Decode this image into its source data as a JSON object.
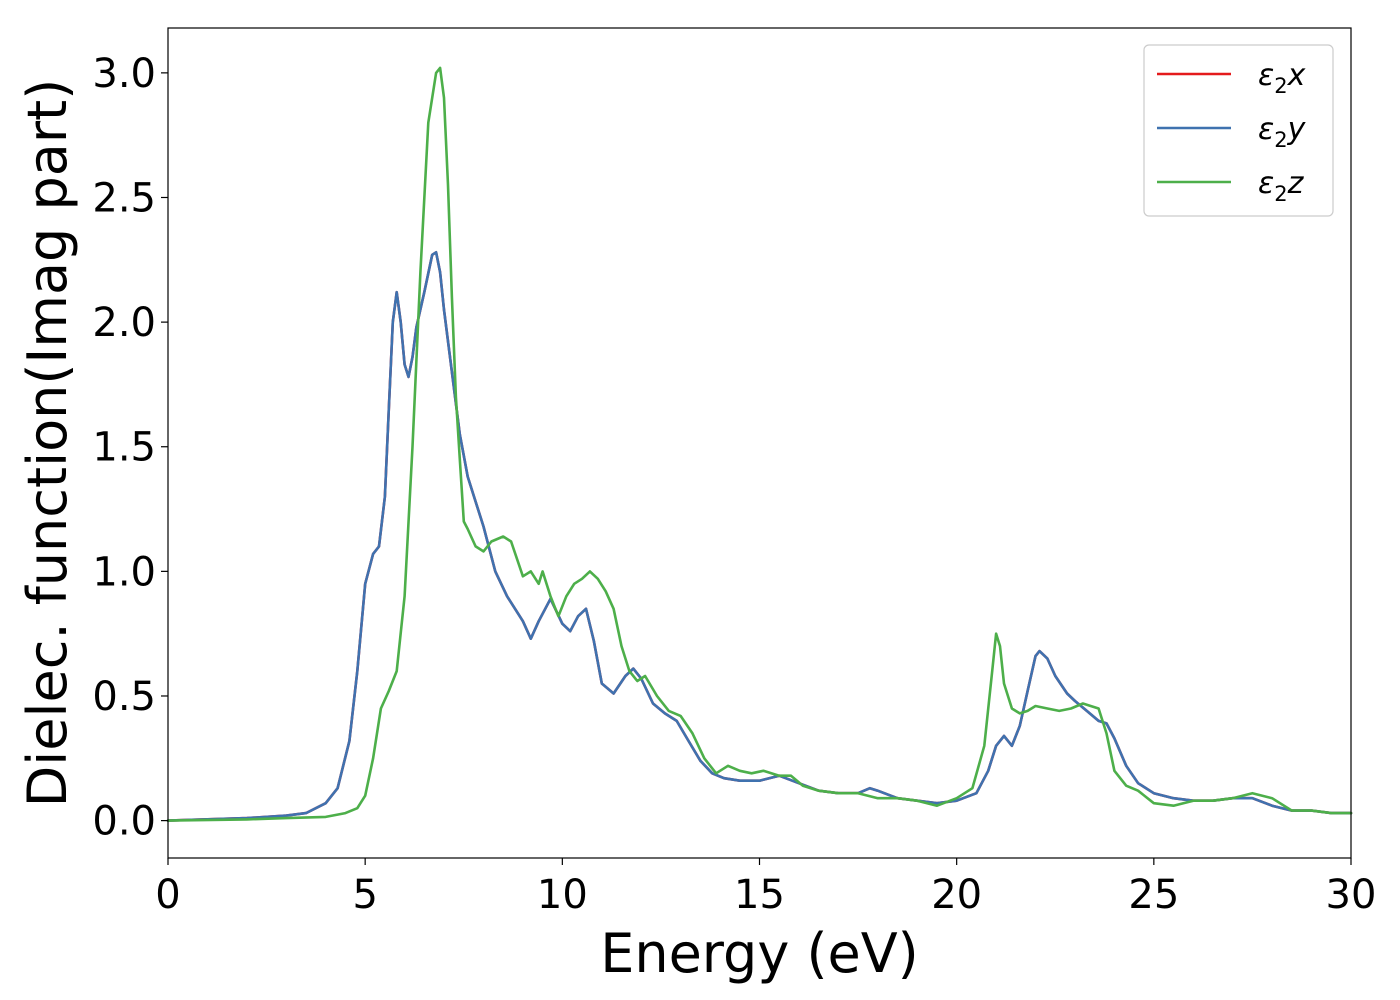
{
  "chart_data": {
    "type": "line",
    "title": "",
    "xlabel": "Energy (eV)",
    "ylabel": "Dielec. function(Imag part)",
    "xlim": [
      0,
      30
    ],
    "ylim": [
      -0.15,
      3.18
    ],
    "xticks": [
      0,
      5,
      10,
      15,
      20,
      25,
      30
    ],
    "yticks": [
      0.0,
      0.5,
      1.0,
      1.5,
      2.0,
      2.5,
      3.0
    ],
    "xtick_labels": [
      "0",
      "5",
      "10",
      "15",
      "20",
      "25",
      "30"
    ],
    "ytick_labels": [
      "0.0",
      "0.5",
      "1.0",
      "1.5",
      "2.0",
      "2.5",
      "3.0"
    ],
    "grid": false,
    "legend_position": "top-right",
    "series": [
      {
        "name": "ε₂x",
        "legend_base": "ε",
        "legend_sub": "2",
        "legend_suffix": "x",
        "color": "#e41a1c",
        "x": [
          0,
          2,
          3,
          3.5,
          4,
          4.3,
          4.6,
          4.8,
          5.0,
          5.2,
          5.35,
          5.5,
          5.6,
          5.7,
          5.8,
          5.9,
          6.0,
          6.1,
          6.2,
          6.3,
          6.5,
          6.7,
          6.8,
          6.9,
          7.0,
          7.2,
          7.4,
          7.6,
          7.8,
          8.0,
          8.3,
          8.6,
          9.0,
          9.2,
          9.4,
          9.7,
          10.0,
          10.2,
          10.4,
          10.6,
          10.8,
          11.0,
          11.3,
          11.6,
          11.8,
          12.0,
          12.3,
          12.6,
          12.9,
          13.2,
          13.5,
          13.8,
          14.1,
          14.5,
          15.0,
          15.5,
          16.0,
          16.5,
          17.0,
          17.5,
          17.8,
          18.0,
          18.5,
          19.0,
          19.5,
          20.0,
          20.5,
          20.8,
          21.0,
          21.2,
          21.4,
          21.6,
          21.8,
          22.0,
          22.1,
          22.3,
          22.5,
          22.8,
          23.0,
          23.3,
          23.6,
          23.8,
          24.0,
          24.3,
          24.6,
          25.0,
          25.5,
          26.0,
          26.5,
          27.0,
          27.5,
          28.0,
          28.5,
          29.0,
          29.5,
          30.0
        ],
        "y": [
          0.0,
          0.01,
          0.02,
          0.03,
          0.07,
          0.13,
          0.32,
          0.6,
          0.95,
          1.07,
          1.1,
          1.3,
          1.65,
          2.0,
          2.12,
          2.0,
          1.83,
          1.78,
          1.86,
          1.98,
          2.12,
          2.27,
          2.28,
          2.2,
          2.05,
          1.8,
          1.55,
          1.38,
          1.28,
          1.18,
          1.0,
          0.9,
          0.8,
          0.73,
          0.8,
          0.89,
          0.79,
          0.76,
          0.82,
          0.85,
          0.72,
          0.55,
          0.51,
          0.58,
          0.61,
          0.57,
          0.47,
          0.43,
          0.4,
          0.32,
          0.24,
          0.19,
          0.17,
          0.16,
          0.16,
          0.18,
          0.15,
          0.12,
          0.11,
          0.11,
          0.13,
          0.12,
          0.09,
          0.08,
          0.07,
          0.08,
          0.11,
          0.2,
          0.3,
          0.34,
          0.3,
          0.38,
          0.52,
          0.66,
          0.68,
          0.65,
          0.58,
          0.51,
          0.48,
          0.44,
          0.4,
          0.39,
          0.33,
          0.22,
          0.15,
          0.11,
          0.09,
          0.08,
          0.08,
          0.09,
          0.09,
          0.06,
          0.04,
          0.04,
          0.03,
          0.03
        ]
      },
      {
        "name": "ε₂y",
        "legend_base": "ε",
        "legend_sub": "2",
        "legend_suffix": "y",
        "color": "#3f72af",
        "x": [
          0,
          2,
          3,
          3.5,
          4,
          4.3,
          4.6,
          4.8,
          5.0,
          5.2,
          5.35,
          5.5,
          5.6,
          5.7,
          5.8,
          5.9,
          6.0,
          6.1,
          6.2,
          6.3,
          6.5,
          6.7,
          6.8,
          6.9,
          7.0,
          7.2,
          7.4,
          7.6,
          7.8,
          8.0,
          8.3,
          8.6,
          9.0,
          9.2,
          9.4,
          9.7,
          10.0,
          10.2,
          10.4,
          10.6,
          10.8,
          11.0,
          11.3,
          11.6,
          11.8,
          12.0,
          12.3,
          12.6,
          12.9,
          13.2,
          13.5,
          13.8,
          14.1,
          14.5,
          15.0,
          15.5,
          16.0,
          16.5,
          17.0,
          17.5,
          17.8,
          18.0,
          18.5,
          19.0,
          19.5,
          20.0,
          20.5,
          20.8,
          21.0,
          21.2,
          21.4,
          21.6,
          21.8,
          22.0,
          22.1,
          22.3,
          22.5,
          22.8,
          23.0,
          23.3,
          23.6,
          23.8,
          24.0,
          24.3,
          24.6,
          25.0,
          25.5,
          26.0,
          26.5,
          27.0,
          27.5,
          28.0,
          28.5,
          29.0,
          29.5,
          30.0
        ],
        "y": [
          0.0,
          0.01,
          0.02,
          0.03,
          0.07,
          0.13,
          0.32,
          0.6,
          0.95,
          1.07,
          1.1,
          1.3,
          1.65,
          2.0,
          2.12,
          2.0,
          1.83,
          1.78,
          1.86,
          1.98,
          2.12,
          2.27,
          2.28,
          2.2,
          2.05,
          1.8,
          1.55,
          1.38,
          1.28,
          1.18,
          1.0,
          0.9,
          0.8,
          0.73,
          0.8,
          0.89,
          0.79,
          0.76,
          0.82,
          0.85,
          0.72,
          0.55,
          0.51,
          0.58,
          0.61,
          0.57,
          0.47,
          0.43,
          0.4,
          0.32,
          0.24,
          0.19,
          0.17,
          0.16,
          0.16,
          0.18,
          0.15,
          0.12,
          0.11,
          0.11,
          0.13,
          0.12,
          0.09,
          0.08,
          0.07,
          0.08,
          0.11,
          0.2,
          0.3,
          0.34,
          0.3,
          0.38,
          0.52,
          0.66,
          0.68,
          0.65,
          0.58,
          0.51,
          0.48,
          0.44,
          0.4,
          0.39,
          0.33,
          0.22,
          0.15,
          0.11,
          0.09,
          0.08,
          0.08,
          0.09,
          0.09,
          0.06,
          0.04,
          0.04,
          0.03,
          0.03
        ]
      },
      {
        "name": "ε₂z",
        "legend_base": "ε",
        "legend_sub": "2",
        "legend_suffix": "z",
        "color": "#4daf4a",
        "x": [
          0,
          2,
          3,
          4,
          4.5,
          4.8,
          5.0,
          5.2,
          5.4,
          5.6,
          5.8,
          6.0,
          6.2,
          6.4,
          6.6,
          6.8,
          6.9,
          7.0,
          7.1,
          7.2,
          7.3,
          7.4,
          7.5,
          7.6,
          7.8,
          8.0,
          8.2,
          8.5,
          8.7,
          9.0,
          9.2,
          9.4,
          9.5,
          9.7,
          9.9,
          10.1,
          10.3,
          10.5,
          10.7,
          10.9,
          11.1,
          11.3,
          11.5,
          11.7,
          11.9,
          12.1,
          12.4,
          12.7,
          13.0,
          13.3,
          13.6,
          13.9,
          14.2,
          14.5,
          14.8,
          15.1,
          15.5,
          15.8,
          16.1,
          16.5,
          17.0,
          17.5,
          18.0,
          18.5,
          19.0,
          19.5,
          20.0,
          20.4,
          20.7,
          20.9,
          21.0,
          21.1,
          21.2,
          21.4,
          21.6,
          21.8,
          22.0,
          22.3,
          22.6,
          22.9,
          23.2,
          23.4,
          23.6,
          23.8,
          24.0,
          24.3,
          24.6,
          25.0,
          25.5,
          26.0,
          26.5,
          27.0,
          27.5,
          28.0,
          28.5,
          29.0,
          29.5,
          30.0
        ],
        "y": [
          0.0,
          0.005,
          0.01,
          0.015,
          0.03,
          0.05,
          0.1,
          0.25,
          0.45,
          0.52,
          0.6,
          0.9,
          1.5,
          2.2,
          2.8,
          3.0,
          3.02,
          2.9,
          2.55,
          2.1,
          1.7,
          1.45,
          1.2,
          1.17,
          1.1,
          1.08,
          1.12,
          1.14,
          1.12,
          0.98,
          1.0,
          0.95,
          1.0,
          0.9,
          0.82,
          0.9,
          0.95,
          0.97,
          1.0,
          0.97,
          0.92,
          0.85,
          0.7,
          0.6,
          0.56,
          0.58,
          0.5,
          0.44,
          0.42,
          0.35,
          0.25,
          0.19,
          0.22,
          0.2,
          0.19,
          0.2,
          0.18,
          0.18,
          0.14,
          0.12,
          0.11,
          0.11,
          0.09,
          0.09,
          0.08,
          0.06,
          0.09,
          0.13,
          0.3,
          0.6,
          0.75,
          0.7,
          0.55,
          0.45,
          0.43,
          0.44,
          0.46,
          0.45,
          0.44,
          0.45,
          0.47,
          0.46,
          0.45,
          0.35,
          0.2,
          0.14,
          0.12,
          0.07,
          0.06,
          0.08,
          0.08,
          0.09,
          0.11,
          0.09,
          0.04,
          0.04,
          0.03,
          0.03
        ]
      }
    ]
  }
}
